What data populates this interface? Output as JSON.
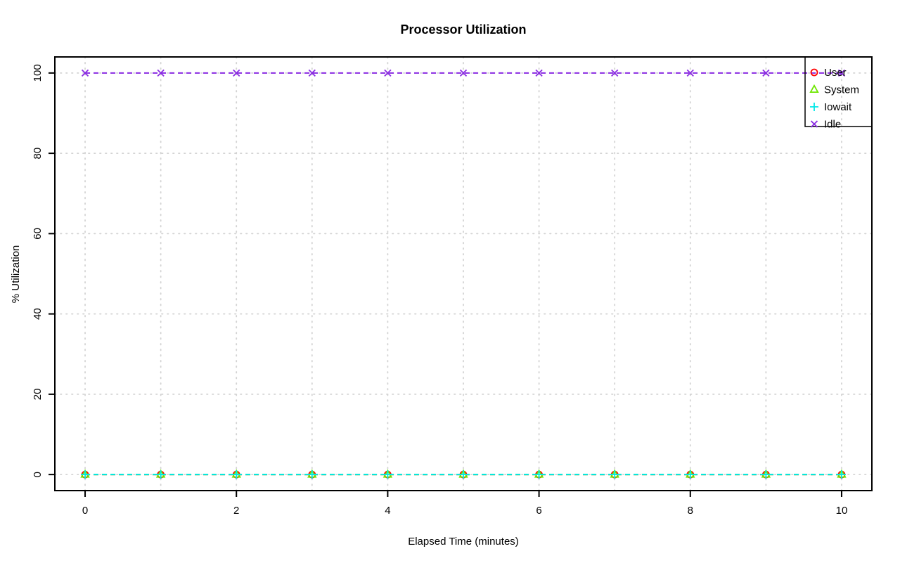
{
  "chart_data": {
    "type": "line",
    "title": "Processor Utilization",
    "xlabel": "Elapsed Time (minutes)",
    "ylabel": "% Utilization",
    "x": [
      0,
      1,
      2,
      3,
      4,
      5,
      6,
      7,
      8,
      9,
      10
    ],
    "xlim": [
      0,
      10
    ],
    "ylim": [
      0,
      100
    ],
    "xticks": [
      0,
      2,
      4,
      6,
      8,
      10
    ],
    "yticks": [
      0,
      20,
      40,
      60,
      80,
      100
    ],
    "grid_x": [
      0,
      1,
      2,
      3,
      4,
      5,
      6,
      7,
      8,
      9,
      10
    ],
    "grid_y": [
      0,
      20,
      40,
      60,
      80,
      100
    ],
    "grid_style": "dotted-lightgray",
    "line_style": "dashed",
    "legend_position": "topright",
    "background": "#ffffff",
    "series": [
      {
        "name": "User",
        "color": "#ff0000",
        "marker": "circle",
        "values": [
          0,
          0,
          0,
          0,
          0,
          0,
          0,
          0,
          0,
          0,
          0
        ]
      },
      {
        "name": "System",
        "color": "#6ee600",
        "marker": "triangle",
        "values": [
          0,
          0,
          0,
          0,
          0,
          0,
          0,
          0,
          0,
          0,
          0
        ]
      },
      {
        "name": "Iowait",
        "color": "#00e8e8",
        "marker": "plus",
        "values": [
          0,
          0,
          0,
          0,
          0,
          0,
          0,
          0,
          0,
          0,
          0
        ]
      },
      {
        "name": "Idle",
        "color": "#8a2be2",
        "marker": "x",
        "values": [
          100,
          100,
          100,
          100,
          100,
          100,
          100,
          100,
          100,
          100,
          100
        ]
      }
    ]
  }
}
